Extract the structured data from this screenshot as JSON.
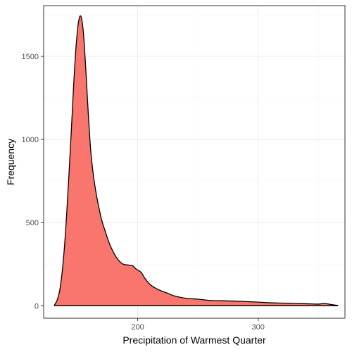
{
  "chart_data": {
    "type": "area",
    "xlabel": "Precipitation of Warmest Quarter",
    "ylabel": "Frequency",
    "xlim": [
      122,
      372
    ],
    "ylim": [
      -75,
      1805
    ],
    "x_ticks": [
      200,
      300
    ],
    "y_ticks": [
      0,
      500,
      1000,
      1500
    ],
    "grid": true,
    "fill_color": "#F8766D",
    "line_color": "#000000",
    "series": [
      {
        "x": [
          131,
          133,
          135,
          137,
          139,
          141,
          143,
          145,
          147,
          149,
          151,
          153,
          155,
          157,
          159,
          161,
          163,
          165,
          167,
          170,
          173,
          176,
          180,
          184,
          188,
          192,
          196,
          198,
          200,
          203,
          206,
          210,
          215,
          220,
          225,
          230,
          240,
          250,
          260,
          270,
          280,
          290,
          300,
          310,
          320,
          330,
          340,
          350,
          355,
          360,
          366
        ],
        "y": [
          5,
          30,
          80,
          180,
          330,
          540,
          790,
          1060,
          1340,
          1570,
          1710,
          1740,
          1640,
          1420,
          1160,
          940,
          800,
          700,
          620,
          520,
          450,
          385,
          320,
          275,
          250,
          245,
          240,
          225,
          215,
          200,
          165,
          130,
          105,
          88,
          75,
          60,
          45,
          40,
          32,
          30,
          28,
          25,
          22,
          18,
          16,
          14,
          12,
          10,
          14,
          8,
          2
        ]
      }
    ]
  }
}
